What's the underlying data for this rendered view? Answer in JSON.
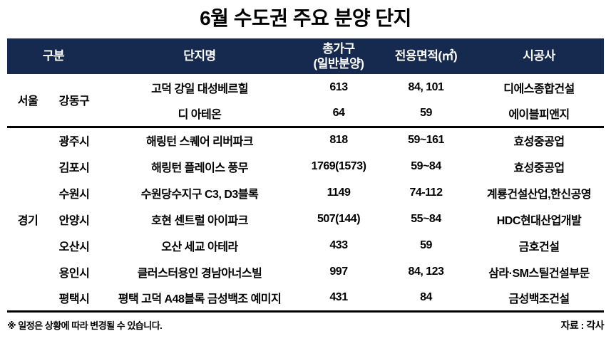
{
  "title": "6월 수도권 주요 분양 단지",
  "colors": {
    "header_bg": "#16294E",
    "header_text": "#FFFFFF",
    "body_text": "#000000",
    "divider": "#000000",
    "background": "#FFFFFF"
  },
  "table_header": {
    "group": "구분",
    "complex_name": "단지명",
    "households_line1": "총가구",
    "households_line2": "(일반분양)",
    "area": "전용면적(㎡)",
    "builder": "시공사"
  },
  "footer": {
    "note": "※ 일정은 상황에 따라 변경될 수 있습니다.",
    "source": "자료 : 각사"
  },
  "chart_data": {
    "type": "table",
    "title": "6월 수도권 주요 분양 단지",
    "columns": [
      "구분(시도)",
      "구분(시군구)",
      "단지명",
      "총가구(일반분양)",
      "전용면적(㎡)",
      "시공사"
    ],
    "rows": [
      [
        "서울",
        "강동구",
        "고덕 강일 대성베르힐",
        "613",
        "84, 101",
        "디에스종합건설"
      ],
      [
        "서울",
        "강동구",
        "디 아테온",
        "64",
        "59",
        "에이블피앤지"
      ],
      [
        "경기",
        "광주시",
        "해링턴 스퀘어 리버파크",
        "818",
        "59~161",
        "효성중공업"
      ],
      [
        "경기",
        "김포시",
        "해링턴 플레이스 풍무",
        "1769(1573)",
        "59~84",
        "효성중공업"
      ],
      [
        "경기",
        "수원시",
        "수원당수지구 C3, D3블록",
        "1149",
        "74-112",
        "계룡건설산업,한신공영"
      ],
      [
        "경기",
        "안양시",
        "호현 센트럴 아이파크",
        "507(144)",
        "55~84",
        "HDC현대산업개발"
      ],
      [
        "경기",
        "오산시",
        "오산 세교 아테라",
        "433",
        "59",
        "금호건설"
      ],
      [
        "경기",
        "용인시",
        "클러스터용인 경남아너스빌",
        "997",
        "84, 123",
        "삼라·SM스틸건설부문"
      ],
      [
        "경기",
        "평택시",
        "평택 고덕 A48블록 금성백조 예미지",
        "431",
        "84",
        "금성백조건설"
      ]
    ],
    "sections": [
      {
        "province": "서울",
        "row_indexes": [
          0,
          1
        ]
      },
      {
        "province": "경기",
        "row_indexes": [
          2,
          3,
          4,
          5,
          6,
          7,
          8
        ]
      }
    ],
    "notes": [
      "※ 일정은 상황에 따라 변경될 수 있습니다.",
      "자료 : 각사"
    ]
  }
}
